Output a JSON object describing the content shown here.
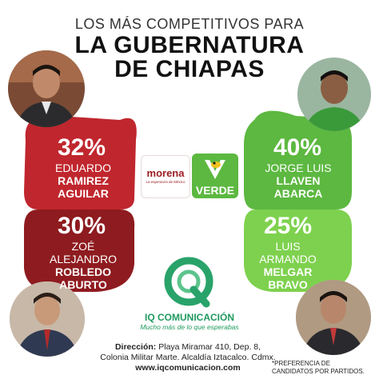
{
  "title": {
    "line1": "LOS MÁS COMPETITIVOS PARA",
    "line2": "LA GUBERNATURA",
    "line3": "DE CHIAPAS"
  },
  "candidates": [
    {
      "pct": "32%",
      "name1": "EDUARDO",
      "name2": "RAMIREZ",
      "name3": "AGUILAR",
      "value": 32,
      "color": "#c0262d"
    },
    {
      "pct": "30%",
      "name1": "ZOÉ",
      "name2": "ALEJANDRO",
      "name3": "ROBLEDO",
      "name4": "ABURTO",
      "value": 30,
      "color": "#8e1b1f"
    },
    {
      "pct": "40%",
      "name1": "JORGE LUIS",
      "name2": "LLAVEN",
      "name3": "ABARCA",
      "value": 40,
      "color": "#5cb840"
    },
    {
      "pct": "25%",
      "name1": "LUIS",
      "name2": "ARMANDO",
      "name3": "MELGAR",
      "name4": "BRAVO",
      "value": 25,
      "color": "#7ed14e"
    }
  ],
  "logos": {
    "morena": "morena",
    "morena_sub": "La esperanza de México",
    "verde": "VERDE"
  },
  "brand": {
    "name": "IQ COMUNICACIÓN",
    "tagline": "Mucho más de lo que esperabas"
  },
  "footer": {
    "label": "Dirección:",
    "line1": "Playa Miramar 410, Dep. 8,",
    "line2": "Colonia Militar Marte. Alcaldía Iztacalco. Cdmx.",
    "line3": "www.iqcomunicacion.com"
  },
  "note": {
    "line1": "*PREFERENCIA DE",
    "line2": "CANDIDATOS POR PARTIDOS."
  }
}
